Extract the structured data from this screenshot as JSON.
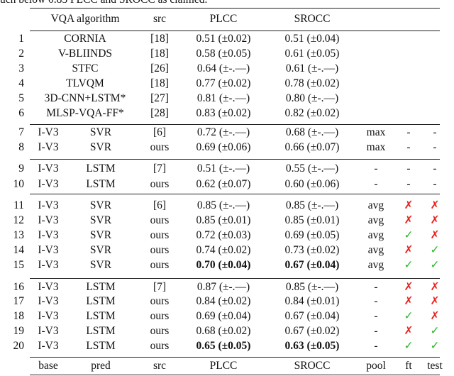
{
  "caption": "uch below 0.85 PLCC and SROCC as claimed.",
  "header": {
    "algorithm": "VQA algorithm",
    "src": "src",
    "plcc": "PLCC",
    "srocc": "SROCC"
  },
  "rows": [
    {
      "no": "1",
      "algorithm": "CORNIA",
      "src": "[18]",
      "plcc": "0.51 (±0.02)",
      "srocc": "0.51 (±0.04)"
    },
    {
      "no": "2",
      "algorithm": "V-BLIINDS",
      "src": "[18]",
      "plcc": "0.58 (±0.05)",
      "srocc": "0.61 (±0.05)"
    },
    {
      "no": "3",
      "algorithm": "STFC",
      "src": "[26]",
      "plcc": "0.64 (±-.—)",
      "srocc": "0.61 (±-.—)"
    },
    {
      "no": "4",
      "algorithm": "TLVQM",
      "src": "[18]",
      "plcc": "0.77 (±0.02)",
      "srocc": "0.78 (±0.02)"
    },
    {
      "no": "5",
      "algorithm": "3D-CNN+LSTM*",
      "src": "[27]",
      "plcc": "0.81 (±-.—)",
      "srocc": "0.80 (±-.—)"
    },
    {
      "no": "6",
      "algorithm": "MLSP-VQA-FF*",
      "src": "[28]",
      "plcc": "0.83 (±0.02)",
      "srocc": "0.82 (±0.02)"
    },
    {
      "no": "7",
      "base": "I-V3",
      "pred": "SVR",
      "src": "[6]",
      "plcc": "0.72 (±-.—)",
      "srocc": "0.68 (±-.—)",
      "pool": "max",
      "ft": "-",
      "test": "-"
    },
    {
      "no": "8",
      "base": "I-V3",
      "pred": "SVR",
      "src": "ours",
      "plcc": "0.69 (±0.06)",
      "srocc": "0.66 (±0.07)",
      "pool": "max",
      "ft": "-",
      "test": "-"
    },
    {
      "no": "9",
      "base": "I-V3",
      "pred": "LSTM",
      "src": "[7]",
      "plcc": "0.51 (±-.—)",
      "srocc": "0.55 (±-.—)",
      "pool": "-",
      "ft": "-",
      "test": "-"
    },
    {
      "no": "10",
      "base": "I-V3",
      "pred": "LSTM",
      "src": "ours",
      "plcc": "0.62 (±0.07)",
      "srocc": "0.60 (±0.06)",
      "pool": "-",
      "ft": "-",
      "test": "-"
    },
    {
      "no": "11",
      "base": "I-V3",
      "pred": "SVR",
      "src": "[6]",
      "plcc": "0.85 (±-.—)",
      "srocc": "0.85 (±-.—)",
      "pool": "avg",
      "ft": {
        "text": "✗",
        "color": "#e8231e"
      },
      "test": {
        "text": "✗",
        "color": "#e8231e"
      }
    },
    {
      "no": "12",
      "base": "I-V3",
      "pred": "SVR",
      "src": "ours",
      "plcc": "0.85 (±0.01)",
      "srocc": "0.85 (±0.01)",
      "pool": "avg",
      "ft": {
        "text": "✗",
        "color": "#e8231e"
      },
      "test": {
        "text": "✗",
        "color": "#e8231e"
      }
    },
    {
      "no": "13",
      "base": "I-V3",
      "pred": "SVR",
      "src": "ours",
      "plcc": "0.72 (±0.03)",
      "srocc": "0.69 (±0.05)",
      "pool": "avg",
      "ft": {
        "text": "✓",
        "color": "#2db82d"
      },
      "test": {
        "text": "✗",
        "color": "#e8231e"
      }
    },
    {
      "no": "14",
      "base": "I-V3",
      "pred": "SVR",
      "src": "ours",
      "plcc": "0.74 (±0.02)",
      "srocc": "0.73 (±0.02)",
      "pool": "avg",
      "ft": {
        "text": "✗",
        "color": "#e8231e"
      },
      "test": {
        "text": "✓",
        "color": "#2db82d"
      }
    },
    {
      "no": "15",
      "base": "I-V3",
      "pred": "SVR",
      "src": "ours",
      "plcc": "0.70 (±0.04)",
      "srocc": "0.67 (±0.04)",
      "pool": "avg",
      "ft": {
        "text": "✓",
        "color": "#2db82d"
      },
      "test": {
        "text": "✓",
        "color": "#2db82d"
      },
      "bold": true
    },
    {
      "no": "16",
      "base": "I-V3",
      "pred": "LSTM",
      "src": "[7]",
      "plcc": "0.87 (±-.—)",
      "srocc": "0.85 (±-.—)",
      "pool": "-",
      "ft": {
        "text": "✗",
        "color": "#e8231e"
      },
      "test": {
        "text": "✗",
        "color": "#e8231e"
      }
    },
    {
      "no": "17",
      "base": "I-V3",
      "pred": "LSTM",
      "src": "ours",
      "plcc": "0.84 (±0.02)",
      "srocc": "0.84 (±0.01)",
      "pool": "-",
      "ft": {
        "text": "✗",
        "color": "#e8231e"
      },
      "test": {
        "text": "✗",
        "color": "#e8231e"
      }
    },
    {
      "no": "18",
      "base": "I-V3",
      "pred": "LSTM",
      "src": "ours",
      "plcc": "0.69 (±0.04)",
      "srocc": "0.67 (±0.04)",
      "pool": "-",
      "ft": {
        "text": "✓",
        "color": "#2db82d"
      },
      "test": {
        "text": "✗",
        "color": "#e8231e"
      }
    },
    {
      "no": "19",
      "base": "I-V3",
      "pred": "LSTM",
      "src": "ours",
      "plcc": "0.68 (±0.02)",
      "srocc": "0.67 (±0.02)",
      "pool": "-",
      "ft": {
        "text": "✗",
        "color": "#e8231e"
      },
      "test": {
        "text": "✓",
        "color": "#2db82d"
      }
    },
    {
      "no": "20",
      "base": "I-V3",
      "pred": "LSTM",
      "src": "ours",
      "plcc": "0.65 (±0.05)",
      "srocc": "0.63 (±0.05)",
      "pool": "-",
      "ft": {
        "text": "✓",
        "color": "#2db82d"
      },
      "test": {
        "text": "✓",
        "color": "#2db82d"
      },
      "bold": true
    }
  ],
  "footer": {
    "base": "base",
    "pred": "pred",
    "src": "src",
    "plcc": "PLCC",
    "srocc": "SROCC",
    "pool": "pool",
    "ft": "ft",
    "test": "test"
  }
}
